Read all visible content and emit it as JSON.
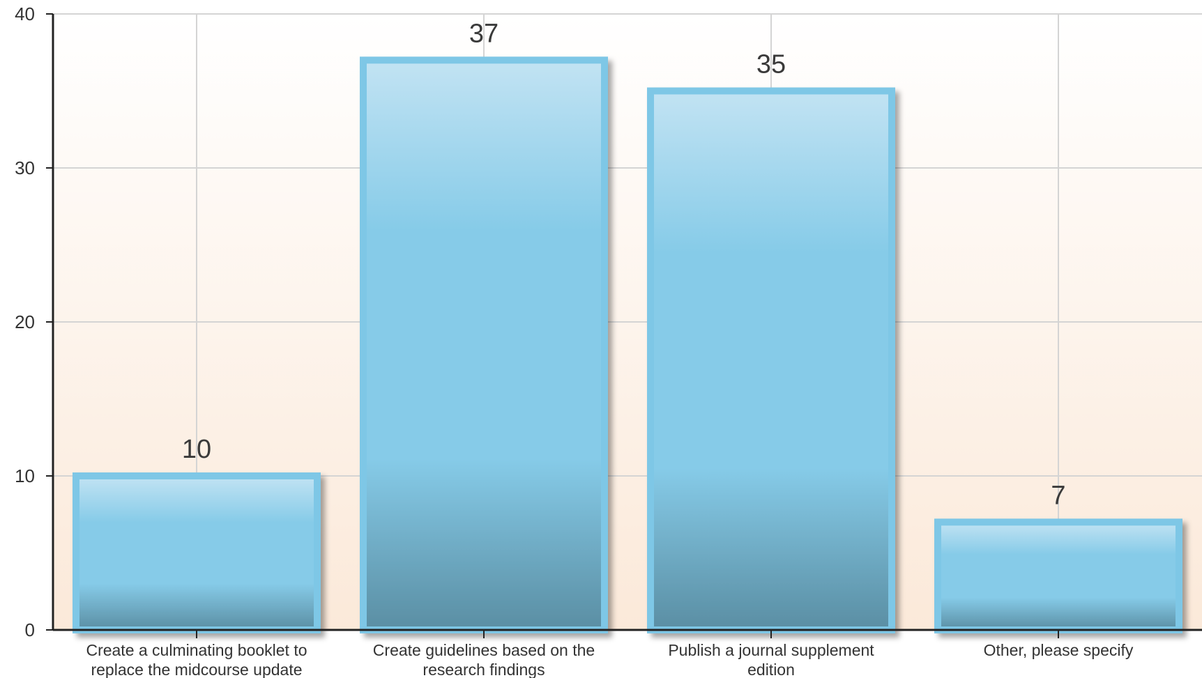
{
  "chart_data": {
    "type": "bar",
    "categories": [
      [
        "Create a culminating booklet to",
        "replace the midcourse update"
      ],
      [
        "Create guidelines based on the",
        "research findings"
      ],
      [
        "Publish a journal supplement",
        "edition"
      ],
      [
        "Other, please specify"
      ]
    ],
    "values": [
      10,
      37,
      35,
      7
    ],
    "value_labels": [
      "10",
      "37",
      "35",
      "7"
    ],
    "y_ticks": [
      "0",
      "10",
      "20",
      "30",
      "40"
    ],
    "ylim": [
      0,
      40
    ],
    "grid": true,
    "colors": {
      "bar_top": "#c2e3f3",
      "bar_mid": "#86cbe8",
      "bar_bottom": "#5a8ea3",
      "bar_border": "#7ec7e6",
      "background_top": "#ffffff",
      "background_bottom": "#fbe9d9",
      "grid": "#d4d4d4",
      "axis": "#222222"
    }
  }
}
